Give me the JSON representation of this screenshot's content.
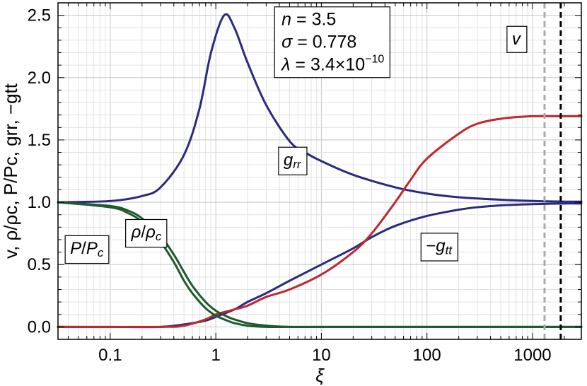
{
  "chart_data": {
    "type": "line",
    "xscale": "log",
    "xlim": [
      0.032,
      2900
    ],
    "ylim": [
      -0.1,
      2.6
    ],
    "grid": true,
    "xlabel": "ξ",
    "ylabel": "v,  ρ/ρc,  P/Pc,  grr,  −gtt",
    "x_ticks": [
      {
        "value": 0.1,
        "label": "0.1"
      },
      {
        "value": 1,
        "label": "1"
      },
      {
        "value": 10,
        "label": "10"
      },
      {
        "value": 100,
        "label": "100"
      },
      {
        "value": 1000,
        "label": "1000"
      }
    ],
    "y_ticks": [
      {
        "value": 0.0,
        "label": "0.0"
      },
      {
        "value": 0.5,
        "label": "0.5"
      },
      {
        "value": 1.0,
        "label": "1.0"
      },
      {
        "value": 1.5,
        "label": "1.5"
      },
      {
        "value": 2.0,
        "label": "2.0"
      },
      {
        "value": 2.5,
        "label": "2.5"
      }
    ],
    "params": {
      "n": "3.5",
      "sigma": "0.778",
      "lambda_mantissa": "3.4",
      "lambda_exponent": "−10"
    },
    "vlines": [
      {
        "x": 1300,
        "color": "#aaaaaa",
        "style": "dashed"
      },
      {
        "x": 1850,
        "color": "#000000",
        "style": "dashed"
      }
    ],
    "series": [
      {
        "name": "grr",
        "color": "#2b2a7e",
        "x": [
          0.032,
          0.1,
          0.2,
          0.3,
          0.5,
          0.7,
          0.9,
          1.2,
          1.5,
          2,
          3,
          5,
          7,
          10,
          20,
          50,
          100,
          200,
          500,
          1000,
          2000,
          2900
        ],
        "y": [
          1.0,
          1.01,
          1.05,
          1.12,
          1.38,
          1.75,
          2.2,
          2.5,
          2.4,
          2.12,
          1.78,
          1.49,
          1.4,
          1.33,
          1.22,
          1.12,
          1.07,
          1.04,
          1.02,
          1.01,
          1.005,
          1.005
        ]
      },
      {
        "name": "−gtt",
        "color": "#2b2a7e",
        "x": [
          0.032,
          0.1,
          0.3,
          0.5,
          0.8,
          1,
          1.5,
          2,
          3,
          5,
          10,
          20,
          30,
          50,
          100,
          200,
          300,
          500,
          1000,
          2000,
          2900
        ],
        "y": [
          0.0,
          0.0,
          0.0,
          0.02,
          0.05,
          0.08,
          0.14,
          0.2,
          0.27,
          0.37,
          0.5,
          0.63,
          0.72,
          0.81,
          0.89,
          0.94,
          0.96,
          0.975,
          0.985,
          0.99,
          0.99
        ]
      },
      {
        "name": "v",
        "color": "#c1272d",
        "x": [
          0.032,
          0.3,
          0.5,
          0.8,
          1,
          1.5,
          2,
          3,
          5,
          10,
          20,
          30,
          50,
          70,
          100,
          200,
          300,
          500,
          1000,
          2000,
          2900
        ],
        "y": [
          0.0,
          0.0,
          0.01,
          0.06,
          0.1,
          0.14,
          0.17,
          0.24,
          0.3,
          0.42,
          0.6,
          0.75,
          1.0,
          1.18,
          1.35,
          1.55,
          1.63,
          1.67,
          1.69,
          1.69,
          1.69
        ]
      },
      {
        "name": "ρ/ρc",
        "color": "#1e5a2e",
        "x": [
          0.032,
          0.1,
          0.15,
          0.2,
          0.3,
          0.4,
          0.5,
          0.6,
          0.8,
          1,
          1.3,
          1.5,
          2,
          3,
          5,
          10,
          100,
          2900
        ],
        "y": [
          1.0,
          0.97,
          0.93,
          0.87,
          0.73,
          0.58,
          0.44,
          0.33,
          0.2,
          0.13,
          0.08,
          0.06,
          0.03,
          0.01,
          0.0,
          0.0,
          0.0,
          0.0
        ]
      },
      {
        "name": "P/Pc",
        "color": "#1e5a2e",
        "x": [
          0.032,
          0.1,
          0.15,
          0.2,
          0.3,
          0.4,
          0.5,
          0.6,
          0.8,
          1,
          1.2,
          1.5,
          2,
          3,
          5,
          10,
          100,
          2900
        ],
        "y": [
          1.0,
          0.96,
          0.91,
          0.84,
          0.68,
          0.52,
          0.37,
          0.27,
          0.15,
          0.09,
          0.06,
          0.03,
          0.01,
          0.0,
          0.0,
          0.0,
          0.0,
          0.0
        ]
      }
    ],
    "labels": [
      {
        "series": "grr",
        "x": 5.3,
        "y": 1.33
      },
      {
        "series": "−gtt",
        "x": 130,
        "y": 0.64
      },
      {
        "series": "v",
        "x": 700,
        "y": 2.3
      },
      {
        "series": "ρ/ρc",
        "x": 0.22,
        "y": 0.75
      },
      {
        "series": "P/Pc",
        "x": 0.06,
        "y": 0.62
      }
    ]
  }
}
